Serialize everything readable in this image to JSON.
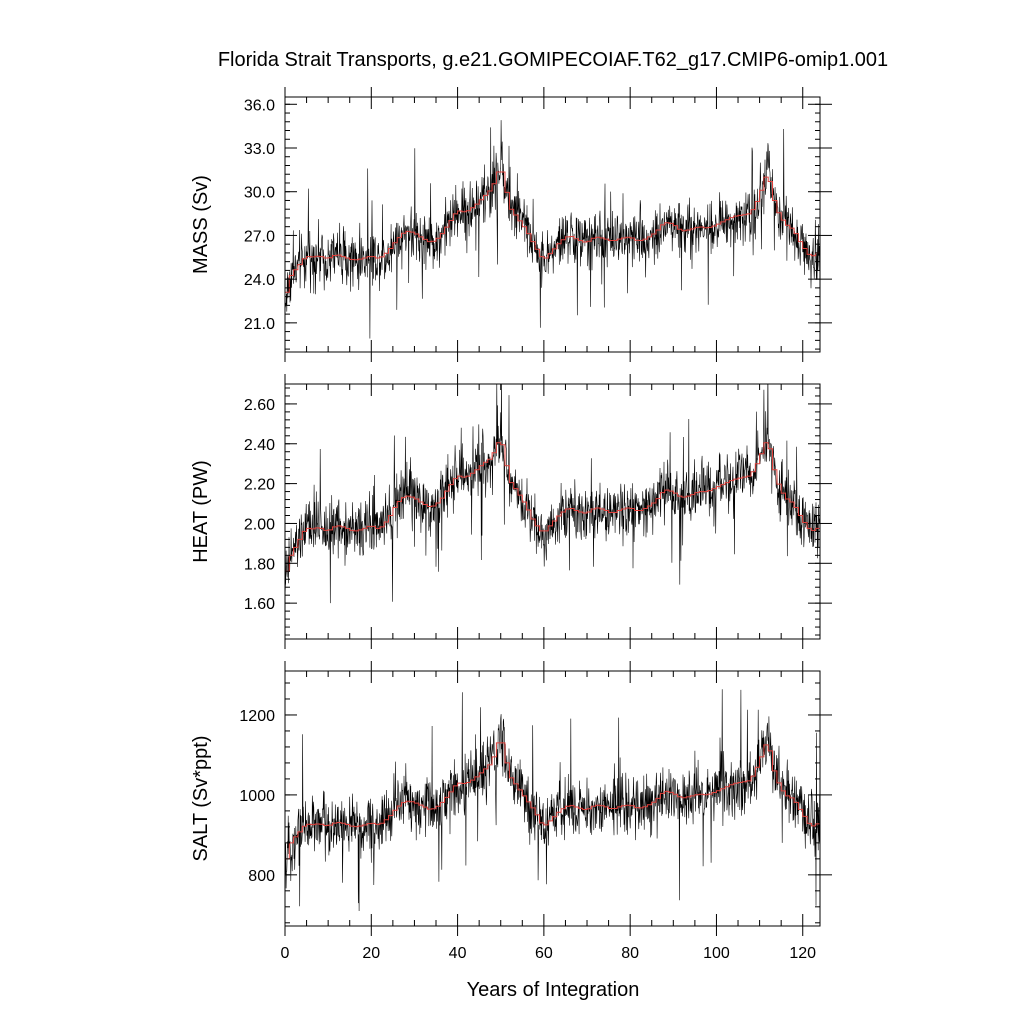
{
  "figure": {
    "title": "Florida Strait Transports, g.e21.GOMIPECOIAF.T62_g17.CMIP6-omip1.001",
    "xlabel": "Years of Integration"
  },
  "chart_data": [
    {
      "type": "line",
      "title": "",
      "xlabel": "",
      "ylabel": "MASS (Sv)",
      "xlim": [
        0,
        124
      ],
      "ylim": [
        19.0,
        36.5
      ],
      "x_ticks": [
        0,
        20,
        40,
        60,
        80,
        100,
        120
      ],
      "y_ticks": [
        21.0,
        24.0,
        27.0,
        30.0,
        33.0,
        36.0
      ],
      "y_tick_labels": [
        "21.0",
        "24.0",
        "27.0",
        "30.0",
        "33.0",
        "36.0"
      ],
      "grid": false,
      "series": [
        {
          "role": "monthly",
          "color": "#000000",
          "x": [
            0,
            1,
            2,
            3,
            4,
            5,
            6,
            8,
            10,
            12,
            14,
            16,
            18,
            20,
            22,
            24,
            26,
            28,
            30,
            32,
            34,
            36,
            38,
            40,
            42,
            44,
            46,
            48,
            49,
            50,
            51,
            52,
            54,
            56,
            58,
            60,
            62,
            64,
            66,
            68,
            70,
            72,
            74,
            76,
            78,
            80,
            82,
            84,
            86,
            88,
            90,
            92,
            94,
            96,
            98,
            100,
            102,
            104,
            106,
            108,
            110,
            111,
            112,
            113,
            114,
            116,
            118,
            120,
            122,
            124
          ],
          "y": [
            22.2,
            24.0,
            24.5,
            24.8,
            25.2,
            25.6,
            25.5,
            25.6,
            25.4,
            25.7,
            25.5,
            25.3,
            25.4,
            25.6,
            25.4,
            25.9,
            26.7,
            27.3,
            27.2,
            26.8,
            26.5,
            26.9,
            27.8,
            28.7,
            28.6,
            29.0,
            29.6,
            30.2,
            30.9,
            31.8,
            30.9,
            29.0,
            28.2,
            27.4,
            26.3,
            25.3,
            25.9,
            26.6,
            27.0,
            26.7,
            26.5,
            26.9,
            26.8,
            26.6,
            26.8,
            26.9,
            26.6,
            26.8,
            27.2,
            27.9,
            27.8,
            27.3,
            27.4,
            27.6,
            27.5,
            27.7,
            28.0,
            28.3,
            28.4,
            28.5,
            29.6,
            30.6,
            31.4,
            30.0,
            28.8,
            27.8,
            27.4,
            26.3,
            25.5,
            25.9
          ],
          "noise_amplitude": 3.0
        },
        {
          "role": "annual-mean",
          "color": "#e0413c",
          "x": [
            0,
            1,
            2,
            3,
            4,
            5,
            6,
            8,
            10,
            12,
            14,
            16,
            18,
            20,
            22,
            24,
            26,
            28,
            30,
            32,
            34,
            36,
            38,
            40,
            42,
            44,
            46,
            48,
            49,
            50,
            51,
            52,
            54,
            56,
            58,
            60,
            62,
            64,
            66,
            68,
            70,
            72,
            74,
            76,
            78,
            80,
            82,
            84,
            86,
            88,
            90,
            92,
            94,
            96,
            98,
            100,
            102,
            104,
            106,
            108,
            110,
            111,
            112,
            113,
            114,
            116,
            118,
            120,
            122,
            124
          ],
          "y": [
            22.2,
            24.0,
            24.5,
            24.8,
            25.2,
            25.6,
            25.5,
            25.6,
            25.4,
            25.7,
            25.5,
            25.3,
            25.4,
            25.6,
            25.4,
            25.9,
            26.7,
            27.3,
            27.2,
            26.8,
            26.5,
            26.9,
            27.8,
            28.7,
            28.6,
            29.0,
            29.6,
            30.2,
            30.9,
            31.8,
            30.9,
            29.0,
            28.2,
            27.4,
            26.3,
            25.3,
            25.9,
            26.6,
            27.0,
            26.7,
            26.5,
            26.9,
            26.8,
            26.6,
            26.8,
            26.9,
            26.6,
            26.8,
            27.2,
            27.9,
            27.8,
            27.3,
            27.4,
            27.6,
            27.5,
            27.7,
            28.0,
            28.3,
            28.4,
            28.5,
            29.6,
            30.6,
            31.4,
            30.0,
            28.8,
            27.8,
            27.4,
            26.3,
            25.5,
            25.9
          ]
        }
      ]
    },
    {
      "type": "line",
      "title": "",
      "xlabel": "",
      "ylabel": "HEAT (PW)",
      "xlim": [
        0,
        124
      ],
      "ylim": [
        1.42,
        2.7
      ],
      "x_ticks": [
        0,
        20,
        40,
        60,
        80,
        100,
        120
      ],
      "y_ticks": [
        1.6,
        1.8,
        2.0,
        2.2,
        2.4,
        2.6
      ],
      "y_tick_labels": [
        "1.60",
        "1.80",
        "2.00",
        "2.20",
        "2.40",
        "2.60"
      ],
      "grid": false,
      "series": [
        {
          "role": "monthly",
          "color": "#000000",
          "x": [
            0,
            1,
            2,
            3,
            4,
            5,
            6,
            8,
            10,
            12,
            14,
            16,
            18,
            20,
            22,
            24,
            26,
            28,
            30,
            32,
            34,
            36,
            38,
            40,
            42,
            44,
            46,
            48,
            49,
            50,
            51,
            52,
            54,
            56,
            58,
            60,
            62,
            64,
            66,
            68,
            70,
            72,
            74,
            76,
            78,
            80,
            82,
            84,
            86,
            88,
            90,
            92,
            94,
            96,
            98,
            100,
            102,
            104,
            106,
            108,
            110,
            111,
            112,
            113,
            114,
            116,
            118,
            120,
            122,
            124
          ],
          "y": [
            1.7,
            1.82,
            1.86,
            1.9,
            1.94,
            1.98,
            1.97,
            1.98,
            1.96,
            1.99,
            1.98,
            1.96,
            1.97,
            1.99,
            1.97,
            2.02,
            2.1,
            2.14,
            2.13,
            2.1,
            2.08,
            2.11,
            2.18,
            2.24,
            2.23,
            2.26,
            2.3,
            2.33,
            2.38,
            2.43,
            2.36,
            2.22,
            2.16,
            2.09,
            2.0,
            1.95,
            2.0,
            2.05,
            2.08,
            2.06,
            2.05,
            2.08,
            2.07,
            2.05,
            2.07,
            2.08,
            2.06,
            2.08,
            2.11,
            2.17,
            2.16,
            2.13,
            2.14,
            2.16,
            2.16,
            2.18,
            2.2,
            2.22,
            2.23,
            2.24,
            2.32,
            2.38,
            2.43,
            2.32,
            2.22,
            2.13,
            2.1,
            2.02,
            1.96,
            1.98
          ],
          "noise_amplitude": 0.22
        },
        {
          "role": "annual-mean",
          "color": "#e0413c",
          "x": [
            0,
            1,
            2,
            3,
            4,
            5,
            6,
            8,
            10,
            12,
            14,
            16,
            18,
            20,
            22,
            24,
            26,
            28,
            30,
            32,
            34,
            36,
            38,
            40,
            42,
            44,
            46,
            48,
            49,
            50,
            51,
            52,
            54,
            56,
            58,
            60,
            62,
            64,
            66,
            68,
            70,
            72,
            74,
            76,
            78,
            80,
            82,
            84,
            86,
            88,
            90,
            92,
            94,
            96,
            98,
            100,
            102,
            104,
            106,
            108,
            110,
            111,
            112,
            113,
            114,
            116,
            118,
            120,
            122,
            124
          ],
          "y": [
            1.7,
            1.82,
            1.86,
            1.9,
            1.94,
            1.98,
            1.97,
            1.98,
            1.96,
            1.99,
            1.98,
            1.96,
            1.97,
            1.99,
            1.97,
            2.02,
            2.1,
            2.14,
            2.13,
            2.1,
            2.08,
            2.11,
            2.18,
            2.24,
            2.23,
            2.26,
            2.3,
            2.33,
            2.38,
            2.43,
            2.36,
            2.22,
            2.16,
            2.09,
            2.0,
            1.95,
            2.0,
            2.05,
            2.08,
            2.06,
            2.05,
            2.08,
            2.07,
            2.05,
            2.07,
            2.08,
            2.06,
            2.08,
            2.11,
            2.17,
            2.16,
            2.13,
            2.14,
            2.16,
            2.16,
            2.18,
            2.2,
            2.22,
            2.23,
            2.24,
            2.32,
            2.38,
            2.43,
            2.32,
            2.22,
            2.13,
            2.1,
            2.02,
            1.96,
            1.98
          ]
        }
      ]
    },
    {
      "type": "line",
      "title": "",
      "xlabel": "",
      "ylabel": "SALT (Sv*ppt)",
      "xlim": [
        0,
        124
      ],
      "ylim": [
        672,
        1310
      ],
      "x_ticks": [
        0,
        20,
        40,
        60,
        80,
        100,
        120
      ],
      "x_tick_labels": [
        "0",
        "20",
        "40",
        "60",
        "80",
        "100",
        "120"
      ],
      "y_ticks": [
        800,
        1000,
        1200
      ],
      "y_tick_labels": [
        "800",
        "1000",
        "1200"
      ],
      "grid": false,
      "series": [
        {
          "role": "monthly",
          "color": "#000000",
          "x": [
            0,
            1,
            2,
            3,
            4,
            5,
            6,
            8,
            10,
            12,
            14,
            16,
            18,
            20,
            22,
            24,
            26,
            28,
            30,
            32,
            34,
            36,
            38,
            40,
            42,
            44,
            46,
            48,
            49,
            50,
            51,
            52,
            54,
            56,
            58,
            60,
            62,
            64,
            66,
            68,
            70,
            72,
            74,
            76,
            78,
            80,
            82,
            84,
            86,
            88,
            90,
            92,
            94,
            96,
            98,
            100,
            102,
            104,
            106,
            108,
            110,
            111,
            112,
            113,
            114,
            116,
            118,
            120,
            122,
            124
          ],
          "y": [
            810,
            870,
            890,
            900,
            915,
            928,
            925,
            928,
            922,
            932,
            928,
            920,
            923,
            930,
            925,
            942,
            968,
            985,
            982,
            972,
            962,
            975,
            1000,
            1030,
            1028,
            1040,
            1060,
            1080,
            1110,
            1150,
            1110,
            1050,
            1020,
            990,
            960,
            920,
            940,
            962,
            975,
            968,
            962,
            975,
            972,
            964,
            972,
            975,
            966,
            972,
            985,
            1010,
            1005,
            992,
            996,
            1002,
            1000,
            1008,
            1018,
            1028,
            1032,
            1036,
            1080,
            1110,
            1140,
            1080,
            1040,
            1000,
            990,
            955,
            920,
            930
          ],
          "noise_amplitude": 120
        },
        {
          "role": "annual-mean",
          "color": "#e0413c",
          "x": [
            0,
            1,
            2,
            3,
            4,
            5,
            6,
            8,
            10,
            12,
            14,
            16,
            18,
            20,
            22,
            24,
            26,
            28,
            30,
            32,
            34,
            36,
            38,
            40,
            42,
            44,
            46,
            48,
            49,
            50,
            51,
            52,
            54,
            56,
            58,
            60,
            62,
            64,
            66,
            68,
            70,
            72,
            74,
            76,
            78,
            80,
            82,
            84,
            86,
            88,
            90,
            92,
            94,
            96,
            98,
            100,
            102,
            104,
            106,
            108,
            110,
            111,
            112,
            113,
            114,
            116,
            118,
            120,
            122,
            124
          ],
          "y": [
            810,
            870,
            890,
            900,
            915,
            928,
            925,
            928,
            922,
            932,
            928,
            920,
            923,
            930,
            925,
            942,
            968,
            985,
            982,
            972,
            962,
            975,
            1000,
            1030,
            1028,
            1040,
            1060,
            1080,
            1110,
            1150,
            1110,
            1050,
            1020,
            990,
            960,
            920,
            940,
            962,
            975,
            968,
            962,
            975,
            972,
            964,
            972,
            975,
            966,
            972,
            985,
            1010,
            1005,
            992,
            996,
            1002,
            1000,
            1008,
            1018,
            1028,
            1032,
            1036,
            1080,
            1110,
            1140,
            1080,
            1040,
            1000,
            990,
            955,
            920,
            930
          ]
        }
      ]
    }
  ]
}
